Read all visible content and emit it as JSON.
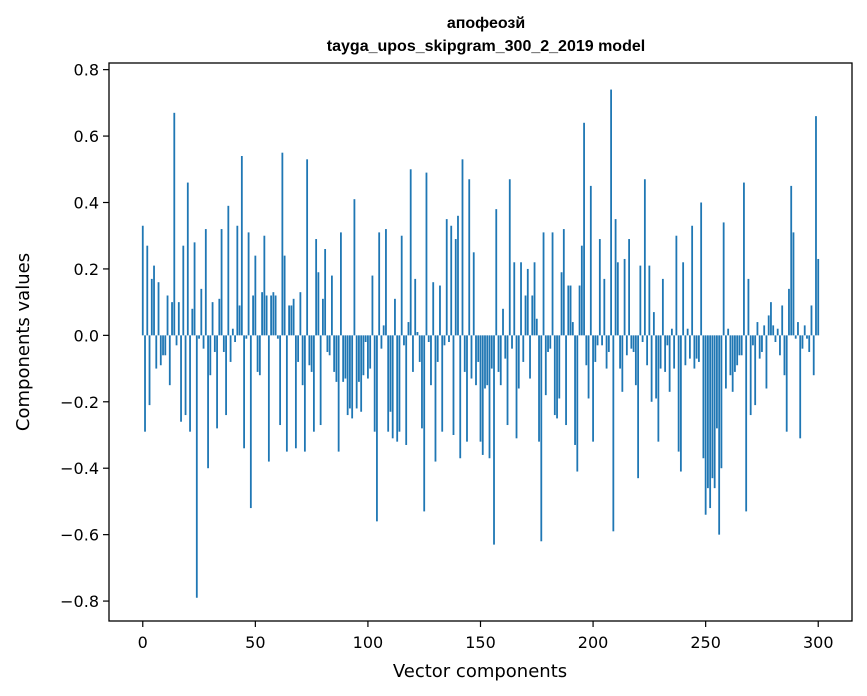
{
  "chart_data": {
    "type": "bar",
    "title": "апофеозй",
    "subtitle": "tayga_upos_skipgram_300_2_2019 model",
    "xlabel": "Vector components",
    "ylabel": "Components values",
    "xlim": [
      -15,
      315
    ],
    "ylim": [
      -0.86,
      0.82
    ],
    "xticks": [
      0,
      50,
      100,
      150,
      200,
      250,
      300
    ],
    "xtick_labels": [
      "0",
      "50",
      "100",
      "150",
      "200",
      "250",
      "300"
    ],
    "yticks": [
      0.8,
      0.6,
      0.4,
      0.2,
      0.0,
      -0.2,
      -0.4,
      -0.6,
      -0.8
    ],
    "ytick_labels": [
      "0.8",
      "0.6",
      "0.4",
      "0.2",
      "0.0",
      "−0.2",
      "−0.4",
      "−0.6",
      "−0.8"
    ],
    "bar_color": "#1f77b4",
    "grid": false,
    "values": [
      0.33,
      -0.29,
      0.27,
      -0.21,
      0.17,
      0.21,
      -0.1,
      0.16,
      -0.09,
      -0.06,
      -0.06,
      0.12,
      -0.15,
      0.1,
      0.67,
      -0.03,
      0.1,
      -0.26,
      0.27,
      -0.24,
      0.46,
      -0.29,
      0.08,
      0.28,
      -0.79,
      -0.01,
      0.14,
      -0.04,
      0.32,
      -0.4,
      -0.12,
      0.1,
      -0.05,
      -0.28,
      0.11,
      0.32,
      -0.05,
      -0.24,
      0.39,
      -0.08,
      0.02,
      -0.02,
      0.33,
      0.09,
      0.54,
      -0.34,
      -0.01,
      0.31,
      -0.52,
      0.12,
      0.24,
      -0.11,
      -0.12,
      0.13,
      0.3,
      0.12,
      -0.38,
      0.12,
      0.13,
      0.12,
      -0.01,
      -0.27,
      0.55,
      0.24,
      -0.35,
      0.09,
      0.09,
      0.11,
      -0.34,
      -0.08,
      0.13,
      -0.15,
      -0.35,
      0.53,
      -0.09,
      -0.11,
      -0.29,
      0.29,
      0.19,
      -0.27,
      0.11,
      0.26,
      -0.05,
      -0.06,
      0.18,
      -0.11,
      -0.14,
      -0.35,
      0.31,
      -0.14,
      -0.13,
      -0.24,
      -0.22,
      -0.25,
      0.41,
      -0.22,
      -0.14,
      -0.23,
      -0.12,
      -0.02,
      -0.13,
      -0.1,
      0.18,
      -0.29,
      -0.56,
      0.31,
      -0.04,
      0.03,
      0.32,
      -0.29,
      -0.23,
      -0.31,
      0.11,
      -0.32,
      -0.29,
      0.3,
      -0.03,
      -0.33,
      0.04,
      0.5,
      -0.11,
      0.17,
      0.01,
      -0.08,
      -0.28,
      -0.53,
      0.49,
      -0.02,
      -0.15,
      0.16,
      -0.38,
      -0.08,
      0.15,
      -0.29,
      -0.03,
      0.35,
      -0.02,
      0.33,
      -0.3,
      0.29,
      0.36,
      -0.37,
      0.53,
      -0.11,
      -0.32,
      0.47,
      -0.13,
      0.25,
      -0.15,
      -0.08,
      -0.32,
      -0.36,
      -0.16,
      -0.15,
      -0.37,
      -0.1,
      -0.63,
      0.38,
      -0.11,
      -0.15,
      0.08,
      -0.07,
      -0.27,
      0.47,
      -0.04,
      0.22,
      -0.31,
      -0.16,
      0.22,
      -0.08,
      0.12,
      0.2,
      -0.13,
      0.12,
      0.22,
      0.05,
      -0.32,
      -0.62,
      0.31,
      -0.18,
      -0.05,
      -0.04,
      0.31,
      -0.24,
      -0.25,
      -0.19,
      0.19,
      0.32,
      -0.27,
      0.15,
      0.15,
      0.04,
      -0.33,
      -0.41,
      0.15,
      0.27,
      0.64,
      -0.09,
      -0.19,
      0.45,
      -0.32,
      -0.08,
      -0.03,
      0.29,
      -0.03,
      0.17,
      -0.1,
      -0.05,
      0.74,
      -0.59,
      0.35,
      0.22,
      -0.1,
      -0.17,
      0.23,
      -0.06,
      0.29,
      -0.04,
      -0.05,
      -0.15,
      -0.43,
      0.21,
      -0.02,
      0.47,
      -0.09,
      0.21,
      -0.2,
      0.07,
      -0.19,
      -0.32,
      -0.1,
      0.17,
      -0.11,
      -0.03,
      -0.17,
      0.02,
      -0.1,
      0.3,
      -0.35,
      -0.41,
      0.22,
      -0.09,
      0.02,
      -0.07,
      0.33,
      -0.1,
      -0.07,
      -0.08,
      0.4,
      -0.37,
      -0.54,
      -0.46,
      -0.52,
      -0.43,
      -0.46,
      -0.28,
      -0.6,
      -0.4,
      0.34,
      -0.16,
      0.02,
      -0.12,
      -0.17,
      -0.11,
      -0.09,
      -0.06,
      -0.06,
      0.46,
      -0.53,
      0.17,
      -0.24,
      -0.03,
      -0.21,
      0.04,
      -0.07,
      -0.05,
      0.03,
      -0.16,
      0.06,
      0.1,
      0.03,
      -0.02,
      0.02,
      -0.06,
      0.09,
      -0.12,
      -0.29,
      0.14,
      0.45,
      0.31,
      -0.01,
      0.04,
      -0.31,
      -0.04,
      0.03,
      -0.01,
      -0.05,
      0.09,
      -0.12,
      0.66,
      0.23
    ]
  }
}
